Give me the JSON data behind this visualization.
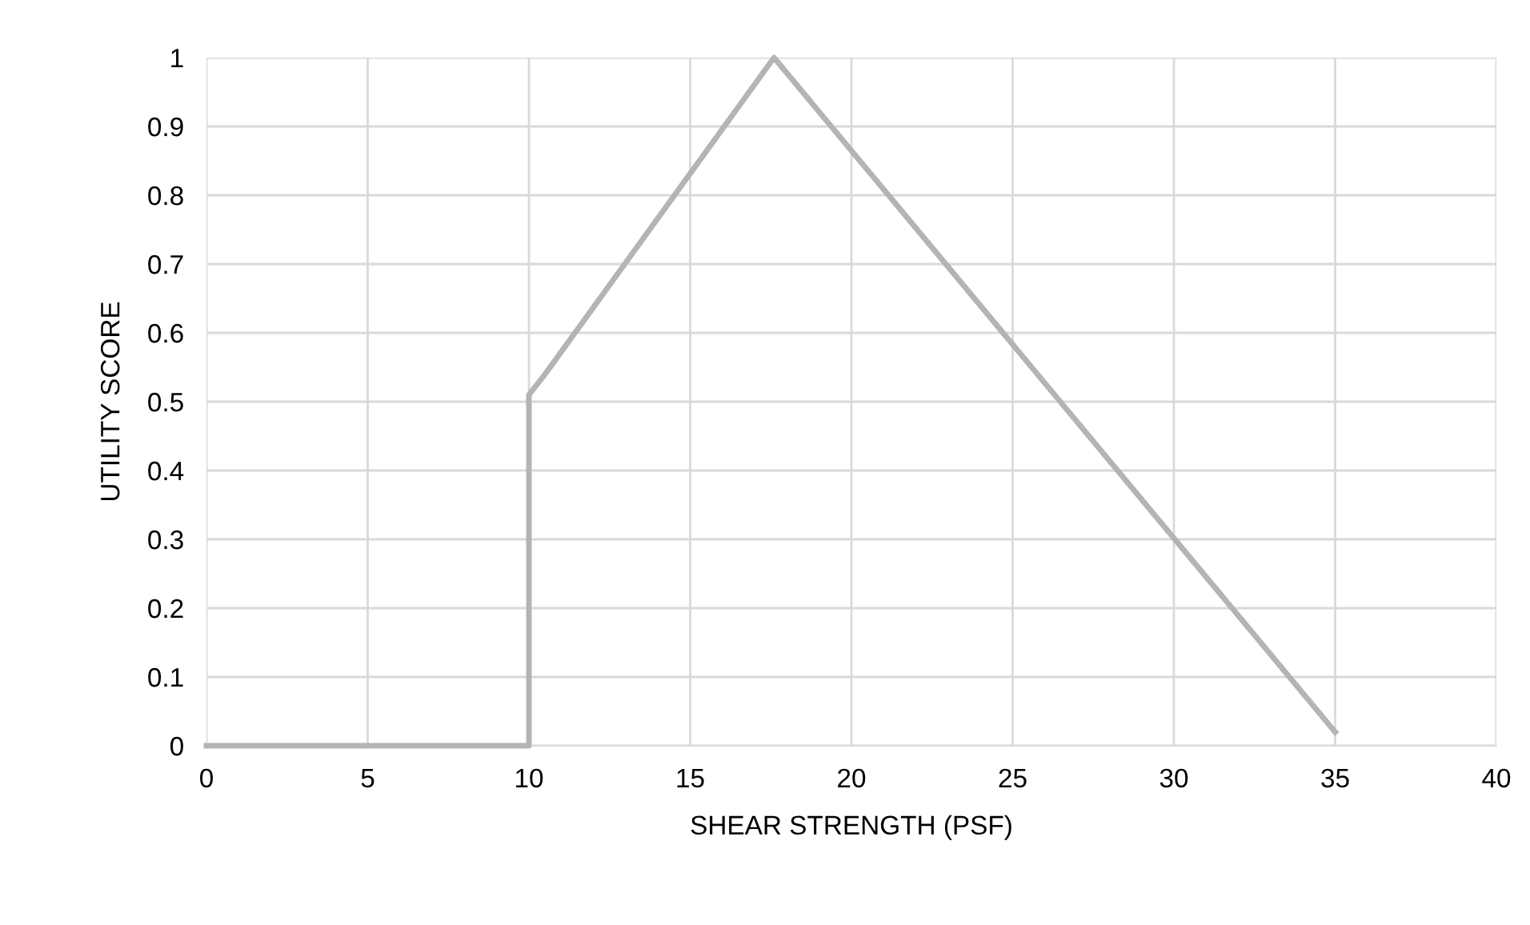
{
  "chart_data": {
    "type": "line",
    "xlabel": "SHEAR STRENGTH (PSF)",
    "ylabel": "UTILITY SCORE",
    "x": [
      0,
      9.3,
      10,
      10,
      10.5,
      17.6,
      35
    ],
    "series": [
      {
        "color": "#b4b4b4",
        "values": [
          0,
          0,
          0,
          0.51,
          0.54,
          1,
          0.02
        ]
      }
    ],
    "xlim": [
      0,
      40
    ],
    "xticks": [
      0,
      5,
      10,
      15,
      20,
      25,
      30,
      35,
      40
    ],
    "ylim": [
      0,
      1
    ],
    "yticks": [
      0,
      0.1,
      0.2,
      0.3,
      0.4,
      0.5,
      0.6,
      0.7,
      0.8,
      0.9,
      1
    ],
    "grid": true,
    "marker": "none",
    "line_style": "solid"
  }
}
